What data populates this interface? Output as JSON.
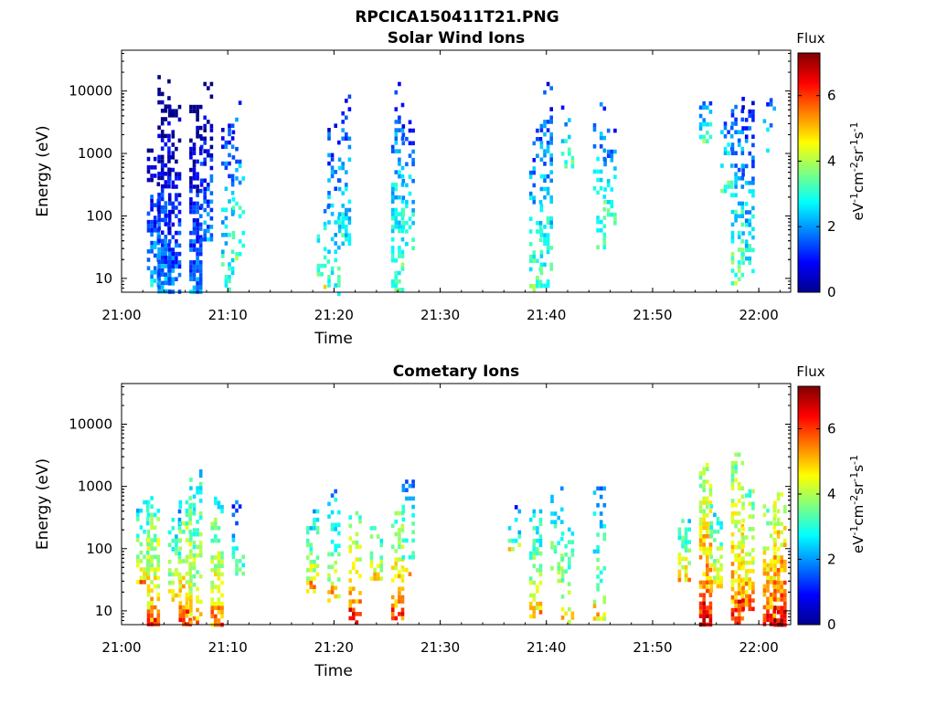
{
  "figure_title": "RPCICA150411T21.PNG",
  "chart_data": [
    {
      "type": "heatmap",
      "title": "Solar Wind Ions",
      "xlabel": "Time",
      "ylabel": "Energy (eV)",
      "x_ticks": [
        "21:00",
        "21:10",
        "21:20",
        "21:30",
        "21:40",
        "21:50",
        "22:00"
      ],
      "x_range": [
        "21:00",
        "22:03"
      ],
      "y_ticks": [
        "10",
        "100",
        "1000",
        "10000"
      ],
      "y_range": [
        6,
        45000
      ],
      "y_scale": "log",
      "colorbar": {
        "label": "Flux",
        "unit": "eV-1cm-2sr-1s-1",
        "ticks": [
          "0",
          "2",
          "4",
          "6"
        ],
        "range": [
          0,
          7.3
        ],
        "colormap": "jet"
      },
      "clusters": [
        {
          "time": "21:03",
          "e_low": 8,
          "e_high": 1200,
          "flux": 1.3,
          "density": 0.45
        },
        {
          "time": "21:04",
          "e_low": 5,
          "e_high": 18000,
          "flux": 0.9,
          "density": 0.65
        },
        {
          "time": "21:05",
          "e_low": 6,
          "e_high": 6000,
          "flux": 0.8,
          "density": 0.55
        },
        {
          "time": "21:07",
          "e_low": 6,
          "e_high": 6000,
          "flux": 0.9,
          "density": 0.65
        },
        {
          "time": "21:08",
          "e_low": 40,
          "e_high": 14000,
          "flux": 1.0,
          "density": 0.45
        },
        {
          "time": "21:10",
          "e_low": 6,
          "e_high": 3000,
          "flux": 2.2,
          "density": 0.35
        },
        {
          "time": "21:11",
          "e_low": 20,
          "e_high": 7000,
          "flux": 2.3,
          "density": 0.3
        },
        {
          "time": "21:19",
          "e_low": 6,
          "e_high": 150,
          "flux": 3.0,
          "density": 0.12
        },
        {
          "time": "21:20",
          "e_low": 6,
          "e_high": 3000,
          "flux": 2.2,
          "density": 0.3
        },
        {
          "time": "21:21",
          "e_low": 30,
          "e_high": 14000,
          "flux": 1.9,
          "density": 0.3
        },
        {
          "time": "21:26",
          "e_low": 6,
          "e_high": 14000,
          "flux": 2.4,
          "density": 0.45
        },
        {
          "time": "21:27",
          "e_low": 30,
          "e_high": 4000,
          "flux": 2.2,
          "density": 0.3
        },
        {
          "time": "21:39",
          "e_low": 6,
          "e_high": 2500,
          "flux": 2.4,
          "density": 0.35
        },
        {
          "time": "21:40",
          "e_low": 6,
          "e_high": 14000,
          "flux": 2.3,
          "density": 0.45
        },
        {
          "time": "21:42",
          "e_low": 600,
          "e_high": 8000,
          "flux": 2.2,
          "density": 0.15
        },
        {
          "time": "21:45",
          "e_low": 30,
          "e_high": 9000,
          "flux": 2.3,
          "density": 0.35
        },
        {
          "time": "21:46",
          "e_low": 80,
          "e_high": 2500,
          "flux": 2.4,
          "density": 0.3
        },
        {
          "time": "21:55",
          "e_low": 1500,
          "e_high": 8000,
          "flux": 2.5,
          "density": 0.3
        },
        {
          "time": "21:57",
          "e_low": 200,
          "e_high": 6000,
          "flux": 2.4,
          "density": 0.3
        },
        {
          "time": "21:58",
          "e_low": 8,
          "e_high": 6000,
          "flux": 2.5,
          "density": 0.45
        },
        {
          "time": "21:59",
          "e_low": 12,
          "e_high": 11000,
          "flux": 2.0,
          "density": 0.4
        },
        {
          "time": "22:01",
          "e_low": 700,
          "e_high": 9000,
          "flux": 2.5,
          "density": 0.25
        }
      ]
    },
    {
      "type": "heatmap",
      "title": "Cometary Ions",
      "xlabel": "Time",
      "ylabel": "Energy (eV)",
      "x_ticks": [
        "21:00",
        "21:10",
        "21:20",
        "21:30",
        "21:40",
        "21:50",
        "22:00"
      ],
      "x_range": [
        "21:00",
        "22:03"
      ],
      "y_ticks": [
        "10",
        "100",
        "1000",
        "10000"
      ],
      "y_range": [
        6,
        45000
      ],
      "y_scale": "log",
      "colorbar": {
        "label": "Flux",
        "unit": "eV-1cm-2sr-1s-1",
        "ticks": [
          "0",
          "2",
          "4",
          "6"
        ],
        "range": [
          0,
          7.3
        ],
        "colormap": "jet"
      },
      "clusters": [
        {
          "time": "21:02",
          "e_low": 30,
          "e_high": 600,
          "flux": 3.5,
          "density": 0.55
        },
        {
          "time": "21:03",
          "e_low": 6,
          "e_high": 700,
          "flux": 4.2,
          "density": 0.75
        },
        {
          "time": "21:05",
          "e_low": 15,
          "e_high": 500,
          "flux": 3.2,
          "density": 0.45
        },
        {
          "time": "21:06",
          "e_low": 6,
          "e_high": 700,
          "flux": 4.3,
          "density": 0.7
        },
        {
          "time": "21:07",
          "e_low": 6,
          "e_high": 3000,
          "flux": 3.6,
          "density": 0.5
        },
        {
          "time": "21:09",
          "e_low": 6,
          "e_high": 800,
          "flux": 4.0,
          "density": 0.6
        },
        {
          "time": "21:11",
          "e_low": 40,
          "e_high": 600,
          "flux": 2.5,
          "density": 0.3
        },
        {
          "time": "21:18",
          "e_low": 20,
          "e_high": 500,
          "flux": 3.5,
          "density": 0.4
        },
        {
          "time": "21:20",
          "e_low": 15,
          "e_high": 900,
          "flux": 3.3,
          "density": 0.45
        },
        {
          "time": "21:22",
          "e_low": 6,
          "e_high": 400,
          "flux": 4.5,
          "density": 0.6
        },
        {
          "time": "21:24",
          "e_low": 30,
          "e_high": 500,
          "flux": 3.4,
          "density": 0.4
        },
        {
          "time": "21:26",
          "e_low": 6,
          "e_high": 400,
          "flux": 4.4,
          "density": 0.6
        },
        {
          "time": "21:27",
          "e_low": 40,
          "e_high": 1500,
          "flux": 2.8,
          "density": 0.3
        },
        {
          "time": "21:37",
          "e_low": 100,
          "e_high": 500,
          "flux": 2.6,
          "density": 0.3
        },
        {
          "time": "21:39",
          "e_low": 8,
          "e_high": 500,
          "flux": 3.5,
          "density": 0.45
        },
        {
          "time": "21:41",
          "e_low": 30,
          "e_high": 1000,
          "flux": 3.0,
          "density": 0.4
        },
        {
          "time": "21:42",
          "e_low": 6,
          "e_high": 300,
          "flux": 3.5,
          "density": 0.3
        },
        {
          "time": "21:45",
          "e_low": 6,
          "e_high": 1000,
          "flux": 3.1,
          "density": 0.3
        },
        {
          "time": "21:53",
          "e_low": 30,
          "e_high": 300,
          "flux": 3.8,
          "density": 0.55
        },
        {
          "time": "21:55",
          "e_low": 6,
          "e_high": 2800,
          "flux": 4.8,
          "density": 0.7
        },
        {
          "time": "21:56",
          "e_low": 20,
          "e_high": 600,
          "flux": 3.6,
          "density": 0.55
        },
        {
          "time": "21:58",
          "e_low": 6,
          "e_high": 3500,
          "flux": 4.5,
          "density": 0.7
        },
        {
          "time": "21:59",
          "e_low": 10,
          "e_high": 900,
          "flux": 4.4,
          "density": 0.65
        },
        {
          "time": "22:01",
          "e_low": 6,
          "e_high": 600,
          "flux": 4.6,
          "density": 0.7
        },
        {
          "time": "22:02",
          "e_low": 6,
          "e_high": 800,
          "flux": 5.0,
          "density": 0.75
        }
      ]
    }
  ]
}
